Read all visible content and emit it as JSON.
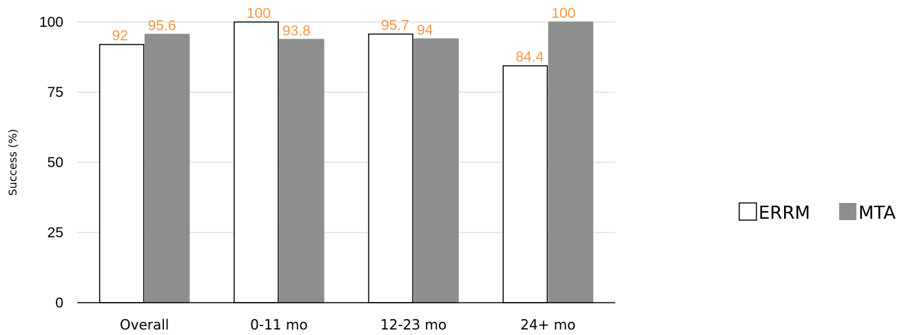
{
  "chart_data": {
    "type": "bar",
    "categories": [
      "Overall",
      "0-11 mo",
      "12-23 mo",
      "24+ mo"
    ],
    "series": [
      {
        "name": "ERRM",
        "values": [
          92,
          100,
          95.7,
          84.4
        ],
        "color": "#ffffff",
        "stroke": "#000000"
      },
      {
        "name": "MTA",
        "values": [
          95.6,
          93.8,
          94,
          100
        ],
        "color": "#8e8e8e",
        "stroke": "#8e8e8e"
      }
    ],
    "data_labels": [
      [
        "92",
        "95.6"
      ],
      [
        "100",
        "93.8"
      ],
      [
        "95.7",
        "94"
      ],
      [
        "84.4",
        "100"
      ]
    ],
    "ylabel": "Success (%)",
    "ylim": [
      0,
      100
    ],
    "yticks": [
      "0",
      "25",
      "50",
      "75",
      "100"
    ],
    "grid": true,
    "legend_position": "right",
    "label_color": "#f2994a"
  }
}
